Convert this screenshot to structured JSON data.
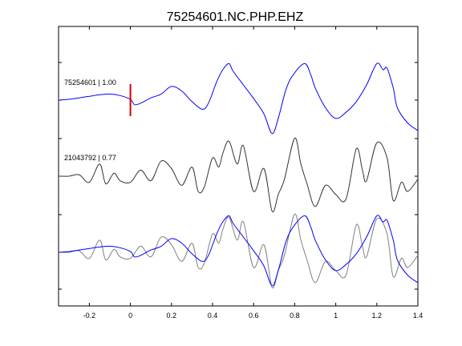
{
  "chart_data": {
    "type": "line",
    "title": "75254601.NC.PHP.EHZ",
    "xlabel": "",
    "ylabel": "",
    "xlim": [
      -0.35,
      1.4
    ],
    "x_ticks": [
      -0.2,
      0,
      0.2,
      0.4,
      0.6,
      0.8,
      1,
      1.2,
      1.4
    ],
    "x_tick_labels": [
      "-0.2",
      "0",
      "0.2",
      "0.4",
      "0.6",
      "0.8",
      "1",
      "1.2",
      "1.4"
    ],
    "grid": false,
    "pick_time": 0,
    "colors": {
      "primary": "#0000ff",
      "secondary": "#333333",
      "pick": "#d40000",
      "overlay_secondary": "#808080"
    },
    "traces": [
      {
        "label": "75254601 | 1.00",
        "color": "#0000ff",
        "x": [
          -0.35,
          -0.3,
          -0.25,
          -0.2,
          -0.15,
          -0.1,
          -0.05,
          0,
          0.02,
          0.05,
          0.1,
          0.15,
          0.2,
          0.25,
          0.3,
          0.35,
          0.38,
          0.42,
          0.45,
          0.48,
          0.5,
          0.55,
          0.6,
          0.65,
          0.69,
          0.72,
          0.76,
          0.8,
          0.85,
          0.88,
          0.9,
          0.95,
          1.0,
          1.05,
          1.1,
          1.15,
          1.2,
          1.23,
          1.25,
          1.28,
          1.3,
          1.35,
          1.4
        ],
        "y": [
          0,
          0.05,
          0.15,
          0.25,
          0.35,
          0.4,
          0.3,
          0.05,
          -0.3,
          -0.2,
          0.15,
          0.4,
          0.9,
          0.6,
          -0.1,
          -0.6,
          -0.2,
          1.2,
          2.0,
          2.4,
          1.9,
          1.0,
          0.1,
          -0.9,
          -2.2,
          -1.2,
          0.8,
          1.8,
          2.4,
          1.6,
          0.8,
          -0.5,
          -1.2,
          -0.8,
          -0.1,
          1.0,
          2.4,
          2.0,
          2.1,
          0.8,
          -0.5,
          -1.5,
          -2.0
        ]
      },
      {
        "label": "21043792 | 0.77",
        "color": "#333333",
        "x": [
          -0.35,
          -0.3,
          -0.25,
          -0.2,
          -0.15,
          -0.12,
          -0.08,
          -0.05,
          0,
          0.05,
          0.1,
          0.15,
          0.2,
          0.25,
          0.3,
          0.33,
          0.36,
          0.4,
          0.43,
          0.45,
          0.48,
          0.52,
          0.55,
          0.6,
          0.65,
          0.69,
          0.72,
          0.75,
          0.8,
          0.83,
          0.86,
          0.9,
          0.95,
          1.0,
          1.05,
          1.1,
          1.13,
          1.15,
          1.2,
          1.25,
          1.28,
          1.32,
          1.35,
          1.4
        ],
        "y": [
          0,
          0,
          0.1,
          -0.4,
          0.8,
          -0.5,
          0.2,
          -0.3,
          -0.4,
          0.4,
          -0.3,
          1.0,
          0.5,
          -0.6,
          0.6,
          -1.0,
          -0.7,
          1.2,
          0.6,
          1.5,
          2.3,
          0.8,
          2.0,
          -1.0,
          0.5,
          -2.3,
          -1.2,
          -0.2,
          2.5,
          0.8,
          -0.5,
          -2.0,
          -0.6,
          -1.2,
          -1.5,
          1.8,
          0.4,
          -0.3,
          2.2,
          1.2,
          -1.6,
          -0.4,
          -1.0,
          -0.2
        ]
      }
    ],
    "overlay": {
      "series": [
        "75254601 | 1.00",
        "21043792 | 0.77"
      ]
    }
  }
}
